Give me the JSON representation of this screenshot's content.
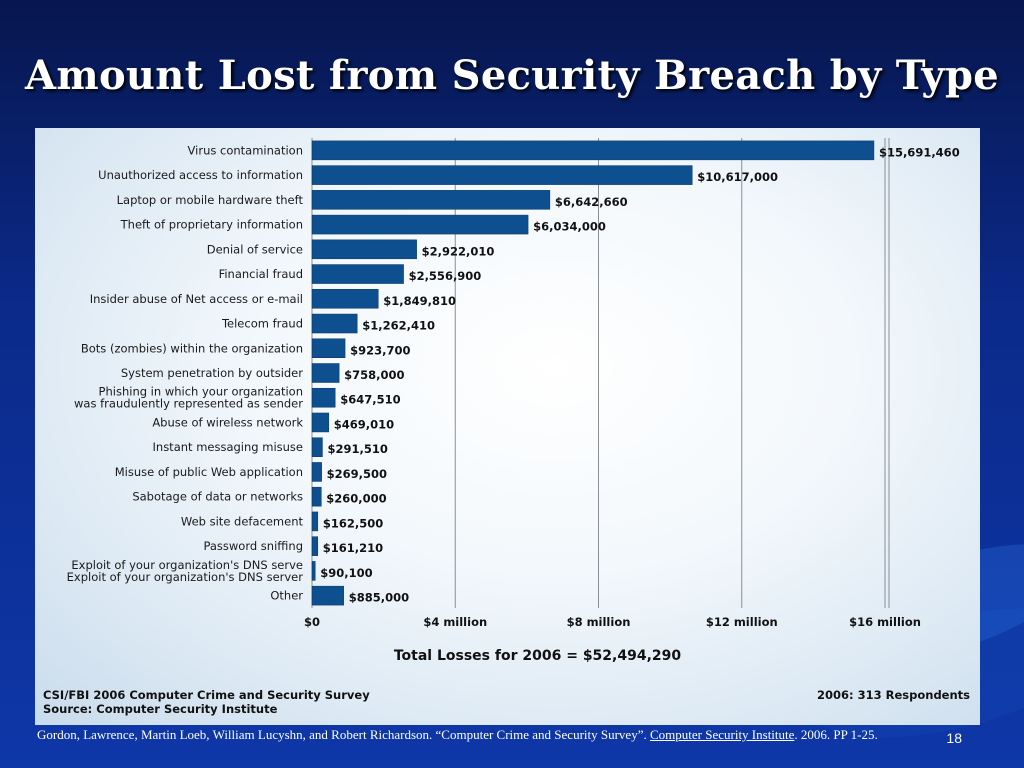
{
  "slide": {
    "title": "Amount Lost from Security Breach by Type",
    "citation_text": "Gordon, Lawrence, Martin Loeb, William Lucyshn, and Robert Richardson. “Computer Crime and Security Survey”. ",
    "citation_link": "Computer Security Institute",
    "citation_tail": ". 2006. PP 1-25.",
    "page_number": "18"
  },
  "chart_data": {
    "type": "bar",
    "orientation": "horizontal",
    "categories": [
      "Virus contamination",
      "Unauthorized access to information",
      "Laptop or mobile hardware theft",
      "Theft of proprietary information",
      "Denial of service",
      "Financial fraud",
      "Insider abuse of Net access or e-mail",
      "Telecom fraud",
      "Bots (zombies) within the organization",
      "System penetration by outsider",
      "Phishing in which your organization was fraudulently represented as sender",
      "Abuse of wireless network",
      "Instant messaging misuse",
      "Misuse of public Web application",
      "Sabotage of data or networks",
      "Web site defacement",
      "Password sniffing",
      "Exploit of your organization's DNS server",
      "Other"
    ],
    "values": [
      15691460,
      10617000,
      6642660,
      6034000,
      2922010,
      2556900,
      1849810,
      1262410,
      923700,
      758000,
      647510,
      469010,
      291510,
      269500,
      260000,
      162500,
      161210,
      90100,
      885000
    ],
    "value_labels": [
      "$15,691,460",
      "$10,617,000",
      "$6,642,660",
      "$6,034,000",
      "$2,922,010",
      "$2,556,900",
      "$1,849,810",
      "$1,262,410",
      "$923,700",
      "$758,000",
      "$647,510",
      "$469,010",
      "$291,510",
      "$269,500",
      "$260,000",
      "$162,500",
      "$161,210",
      "$90,100",
      "$885,000"
    ],
    "x_ticks": [
      0,
      4000000,
      8000000,
      12000000,
      16000000
    ],
    "x_tick_labels": [
      "$0",
      "$4 million",
      "$8 million",
      "$12 million",
      "$16 million"
    ],
    "xlim": [
      0,
      16000000
    ],
    "grid": true,
    "bar_color": "#0d4f8f",
    "total_text": "Total Losses for 2006 = $52,494,290",
    "source_line1": "CSI/FBI 2006 Computer Crime and Security Survey",
    "source_line2": "Source: Computer Security Institute",
    "respondents": "2006: 313 Respondents"
  }
}
